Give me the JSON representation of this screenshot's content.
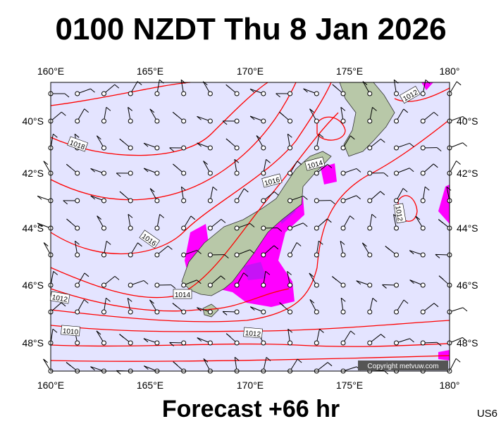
{
  "header": {
    "title": "0100 NZDT Thu 8 Jan 2026"
  },
  "map": {
    "lon_labels": [
      "160°E",
      "165°E",
      "170°E",
      "175°E",
      "180°"
    ],
    "lat_labels": [
      "40°S",
      "42°S",
      "44°S",
      "46°S",
      "48°S"
    ],
    "isobar_labels": [
      "1012",
      "1018",
      "1014",
      "1016",
      "1016",
      "1014",
      "1012",
      "1010",
      "1012",
      "1012"
    ],
    "copyright": "Copyright metvuw.com"
  },
  "footer": {
    "forecast": "Forecast +66 hr",
    "code": "US6"
  }
}
